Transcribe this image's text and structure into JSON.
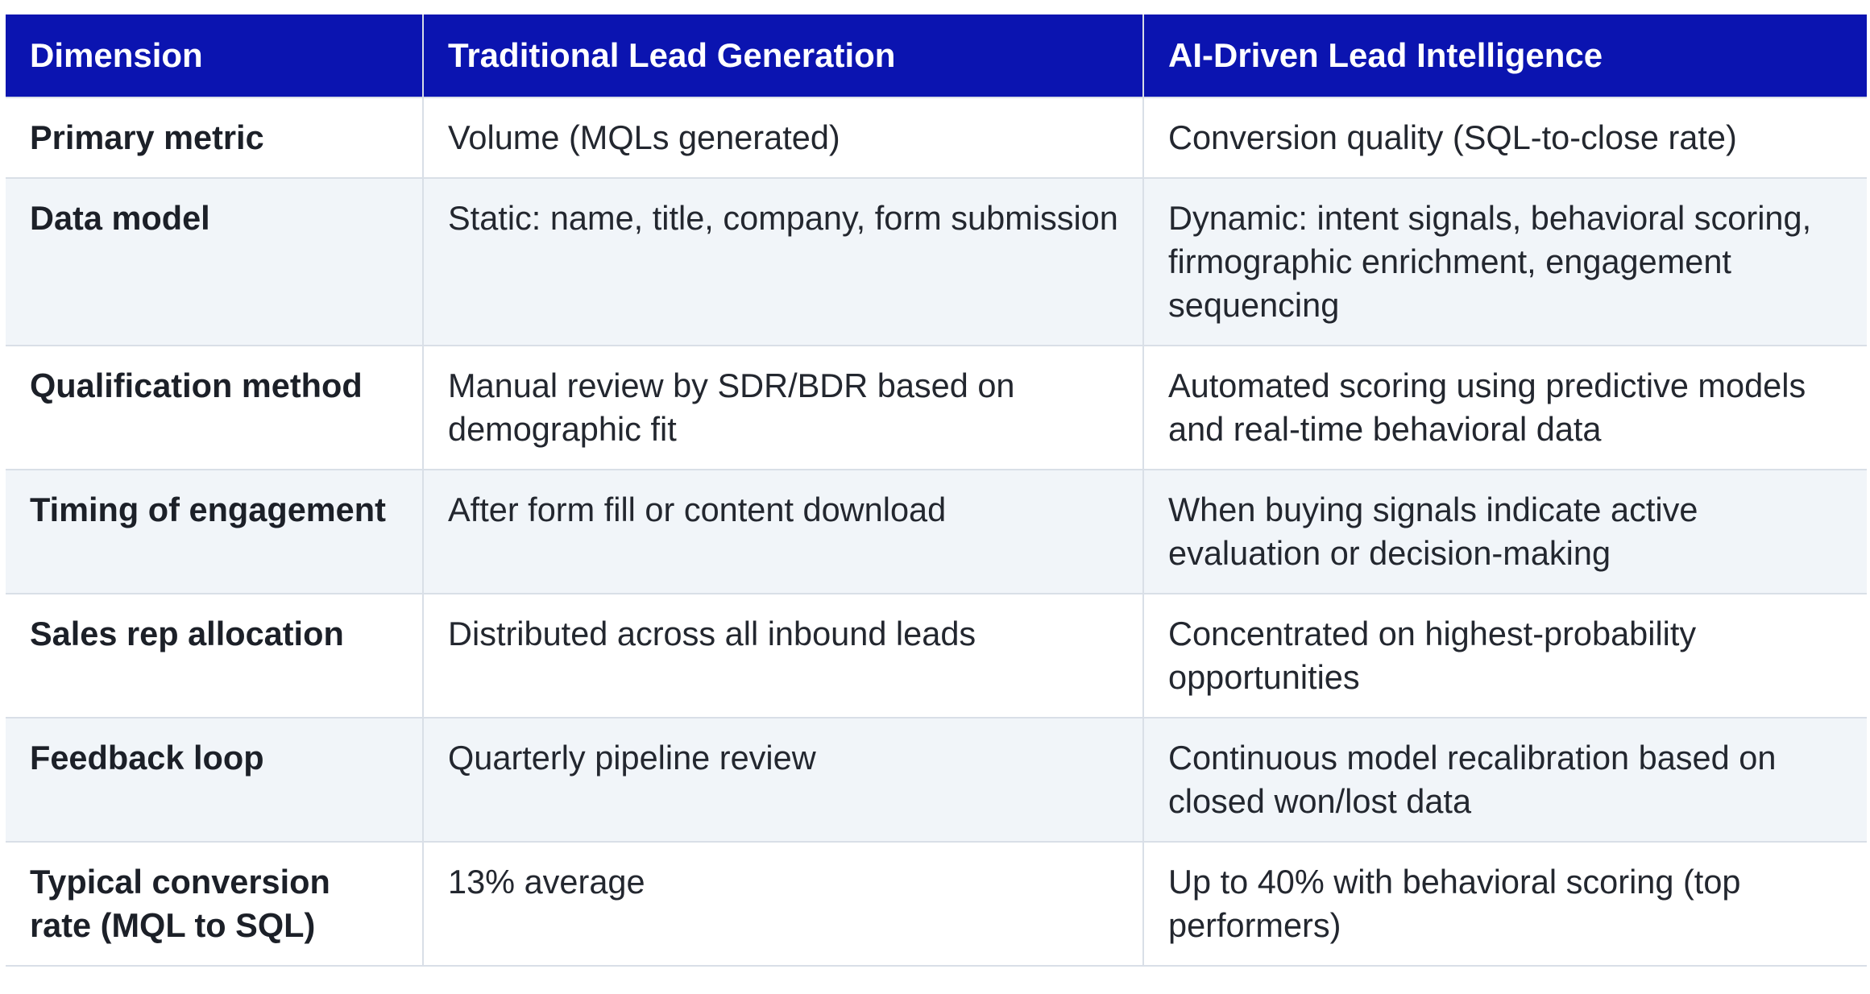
{
  "table": {
    "headers": [
      "Dimension",
      "Traditional Lead Generation",
      "AI-Driven Lead Intelligence"
    ],
    "rows": [
      [
        "Primary metric",
        "Volume (MQLs generated)",
        "Conversion quality (SQL-to-close rate)"
      ],
      [
        "Data model",
        "Static: name, title, company, form submission",
        "Dynamic: intent signals, behavioral scoring, firmographic enrichment, engagement sequencing"
      ],
      [
        "Qualification method",
        "Manual review by SDR/BDR based on demographic fit",
        "Automated scoring using predictive models and real-time behavioral data"
      ],
      [
        "Timing of engagement",
        "After form fill or content download",
        "When buying signals indicate active evaluation or decision-making"
      ],
      [
        "Sales rep allocation",
        "Distributed across all inbound leads",
        "Concentrated on highest-probability opportunities"
      ],
      [
        "Feedback loop",
        "Quarterly pipeline review",
        "Continuous model recalibration based on closed won/lost data"
      ],
      [
        "Typical conversion rate (MQL to SQL)",
        "13% average",
        "Up to 40% with behavioral scoring (top performers)"
      ]
    ]
  },
  "colors": {
    "header_bg": "#0b14b0",
    "header_text": "#ffffff",
    "row_alt_bg": "#f1f5f9",
    "border": "#d9dfe7"
  }
}
